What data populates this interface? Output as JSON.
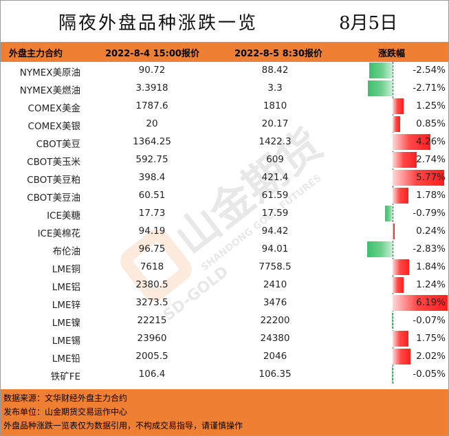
{
  "title": "隔夜外盘品种涨跌一览",
  "date": "8月5日",
  "columns": {
    "name": "外盘主力合约",
    "price1": "2022-8-4 15:00报价",
    "price2": "2022-8-5 8:30报价",
    "change": "涨跌幅"
  },
  "rows": [
    {
      "name": "NYMEX美原油",
      "p1": "90.72",
      "p2": "88.42",
      "pct": "-2.54%",
      "change": -2.54
    },
    {
      "name": "NYMEX美燃油",
      "p1": "3.3918",
      "p2": "3.3",
      "pct": "-2.71%",
      "change": -2.71
    },
    {
      "name": "COMEX美金",
      "p1": "1787.6",
      "p2": "1810",
      "pct": "1.25%",
      "change": 1.25
    },
    {
      "name": "COMEX美银",
      "p1": "20",
      "p2": "20.17",
      "pct": "0.85%",
      "change": 0.85
    },
    {
      "name": "CBOT美豆",
      "p1": "1364.25",
      "p2": "1422.3",
      "pct": "4.26%",
      "change": 4.26
    },
    {
      "name": "CBOT美玉米",
      "p1": "592.75",
      "p2": "609",
      "pct": "2.74%",
      "change": 2.74
    },
    {
      "name": "CBOT美豆粕",
      "p1": "398.4",
      "p2": "421.4",
      "pct": "5.77%",
      "change": 5.77
    },
    {
      "name": "CBOT美豆油",
      "p1": "60.51",
      "p2": "61.59",
      "pct": "1.78%",
      "change": 1.78
    },
    {
      "name": "ICE美糖",
      "p1": "17.73",
      "p2": "17.59",
      "pct": "-0.79%",
      "change": -0.79
    },
    {
      "name": "ICE美棉花",
      "p1": "94.19",
      "p2": "94.42",
      "pct": "0.24%",
      "change": 0.24
    },
    {
      "name": "布伦油",
      "p1": "96.75",
      "p2": "94.01",
      "pct": "-2.83%",
      "change": -2.83
    },
    {
      "name": "LME铜",
      "p1": "7618",
      "p2": "7758.5",
      "pct": "1.84%",
      "change": 1.84
    },
    {
      "name": "LME铝",
      "p1": "2380.5",
      "p2": "2410",
      "pct": "1.24%",
      "change": 1.24
    },
    {
      "name": "LME锌",
      "p1": "3273.5",
      "p2": "3476",
      "pct": "6.19%",
      "change": 6.19
    },
    {
      "name": "LME镍",
      "p1": "22215",
      "p2": "22200",
      "pct": "-0.07%",
      "change": -0.07
    },
    {
      "name": "LME锡",
      "p1": "23960",
      "p2": "24380",
      "pct": "1.75%",
      "change": 1.75
    },
    {
      "name": "LME铅",
      "p1": "2005.5",
      "p2": "2046",
      "pct": "2.02%",
      "change": 2.02
    },
    {
      "name": "铁矿FE",
      "p1": "106.4",
      "p2": "106.35",
      "pct": "-0.05%",
      "change": -0.05
    }
  ],
  "footer": {
    "source": "数据来源：文华财经外盘主力合约",
    "publisher": "发布单位：山金期货交易运作中心",
    "disclaimer": "外盘品种涨跌一览表仅为数据引用，不构成交易指导，请谨慎操作"
  },
  "watermark": {
    "text": "山金期货",
    "en1": "SHANDONG GOLD FUTURES",
    "en2": "SD-GOLD"
  },
  "colors": {
    "accent": "#ee7f33",
    "up": "#ff3030",
    "down": "#3cbf6b"
  }
}
